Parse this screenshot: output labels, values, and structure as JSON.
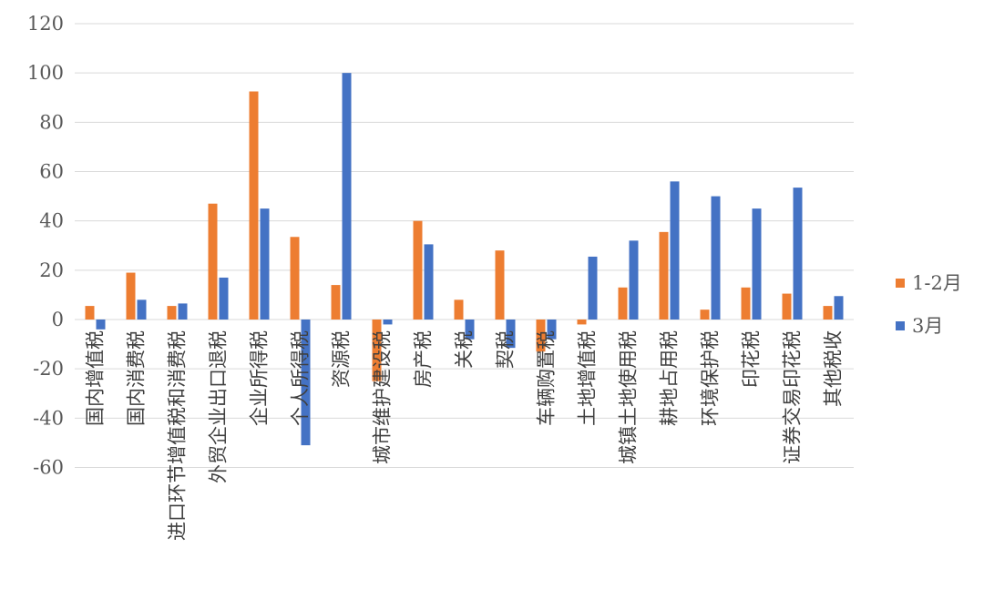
{
  "chart_data": {
    "type": "bar",
    "title": "",
    "xlabel": "",
    "ylabel": "",
    "ylim": [
      -60,
      120
    ],
    "yticks": [
      120,
      100,
      80,
      60,
      40,
      20,
      0,
      -20,
      -40,
      -60
    ],
    "grid": true,
    "legend_position": "right",
    "categories": [
      "国内增值税",
      "国内消费税",
      "进口环节增值税和消费税",
      "外贸企业出口退税",
      "企业所得税",
      "个人所得税",
      "资源税",
      "城市维护建设税",
      "房产税",
      "关税",
      "契税",
      "车辆购置税",
      "土地增值税",
      "城镇土地使用税",
      "耕地占用税",
      "环境保护税",
      "印花税",
      "证券交易印花税",
      "其他税收"
    ],
    "series": [
      {
        "name": "1-2月",
        "color": "#ED7D31",
        "values": [
          5.5,
          19,
          5.5,
          47,
          92.5,
          33.5,
          14,
          -25,
          40,
          8,
          28,
          -13,
          -2,
          13,
          35.5,
          4,
          13,
          10.5,
          5.5
        ]
      },
      {
        "name": "3月",
        "color": "#4472C4",
        "values": [
          -4,
          8,
          6.5,
          17,
          45,
          -51,
          100,
          -2,
          30.5,
          -8,
          -11.5,
          -8,
          25.5,
          32,
          56,
          50,
          45,
          53.5,
          9.5
        ]
      }
    ]
  }
}
